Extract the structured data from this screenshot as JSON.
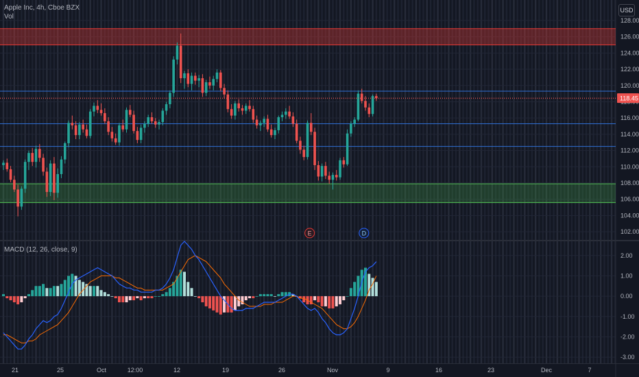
{
  "header": {
    "title": "Apple Inc, 4h, Cboe BZX",
    "vol_label": "Vol",
    "currency": "USD"
  },
  "colors": {
    "background": "#131722",
    "up": "#26a69a",
    "down": "#ef5350",
    "resistance_zone": "#e53935",
    "support_zone": "#43a047",
    "level_line": "#2962ff",
    "macd_line": "#2962ff",
    "signal_line": "#ff6d00"
  },
  "chart_data": [
    {
      "type": "candlestick",
      "title": "Apple Inc, 4h, Cboe BZX",
      "y_axis_ticks": [
        102,
        104,
        106,
        108,
        110,
        112,
        114,
        116,
        118,
        120,
        122,
        124,
        126,
        128
      ],
      "y_axis_tick_labels": [
        "102.00",
        "104.00",
        "106.00",
        "108.00",
        "110.00",
        "112.00",
        "114.00",
        "116.00",
        "118.00",
        "120.00",
        "122.00",
        "124.00",
        "126.00",
        "128.00"
      ],
      "ylim": [
        101,
        128.5
      ],
      "x_axis_labels": [
        "21",
        "25",
        "Oct",
        "12:00",
        "12",
        "19",
        "26",
        "Nov",
        "9",
        "16",
        "23",
        "Dec",
        "7"
      ],
      "last_price": 118.45,
      "last_price_label": "118.45",
      "resistance_zone": [
        125,
        127
      ],
      "support_zone": [
        105.6,
        107.9
      ],
      "horizontal_levels": [
        119.3,
        118.4,
        115.3,
        112.5
      ],
      "events": [
        {
          "label": "E",
          "candle_index": 88
        },
        {
          "label": "D",
          "candle_index": 103
        }
      ],
      "candles": [
        [
          110.2,
          110.8,
          109.6,
          110.5
        ],
        [
          110.5,
          111.0,
          109.4,
          109.7
        ],
        [
          109.7,
          110.1,
          108.1,
          108.4
        ],
        [
          108.4,
          108.9,
          106.9,
          107.2
        ],
        [
          107.2,
          107.8,
          103.9,
          105.1
        ],
        [
          105.1,
          107.6,
          104.7,
          107.3
        ],
        [
          107.3,
          110.9,
          106.8,
          110.6
        ],
        [
          110.6,
          112.0,
          109.6,
          111.7
        ],
        [
          111.7,
          112.3,
          110.1,
          110.6
        ],
        [
          110.6,
          112.6,
          109.9,
          112.2
        ],
        [
          112.2,
          112.8,
          110.6,
          111.1
        ],
        [
          111.1,
          111.6,
          108.9,
          109.4
        ],
        [
          109.4,
          109.9,
          106.3,
          106.9
        ],
        [
          106.9,
          110.8,
          106.4,
          110.4
        ],
        [
          110.4,
          111.2,
          105.9,
          106.8
        ],
        [
          106.8,
          109.8,
          106.2,
          109.1
        ],
        [
          109.1,
          111.3,
          108.6,
          110.9
        ],
        [
          110.9,
          113.1,
          110.4,
          112.9
        ],
        [
          112.9,
          115.7,
          112.4,
          115.4
        ],
        [
          115.4,
          116.3,
          114.6,
          115.1
        ],
        [
          115.1,
          115.6,
          113.4,
          113.9
        ],
        [
          113.9,
          115.5,
          113.4,
          115.2
        ],
        [
          115.2,
          115.8,
          114.2,
          114.6
        ],
        [
          114.6,
          115.2,
          113.5,
          113.8
        ],
        [
          113.8,
          117.1,
          113.5,
          116.8
        ],
        [
          116.8,
          117.9,
          116.2,
          117.5
        ],
        [
          117.5,
          118.2,
          116.6,
          117.0
        ],
        [
          117.0,
          117.8,
          116.3,
          116.6
        ],
        [
          116.6,
          117.2,
          115.3,
          115.6
        ],
        [
          115.6,
          116.1,
          113.9,
          114.3
        ],
        [
          114.3,
          114.9,
          113.1,
          113.5
        ],
        [
          113.5,
          114.1,
          112.7,
          113.0
        ],
        [
          113.0,
          115.4,
          112.6,
          115.1
        ],
        [
          115.1,
          115.8,
          114.3,
          114.6
        ],
        [
          114.6,
          117.3,
          114.2,
          117.0
        ],
        [
          117.0,
          117.6,
          116.1,
          116.4
        ],
        [
          116.4,
          116.9,
          114.1,
          114.4
        ],
        [
          114.4,
          114.9,
          112.9,
          113.3
        ],
        [
          113.3,
          115.2,
          112.9,
          114.8
        ],
        [
          114.8,
          115.6,
          114.2,
          115.3
        ],
        [
          115.3,
          116.4,
          114.9,
          116.1
        ],
        [
          116.1,
          116.7,
          115.3,
          115.6
        ],
        [
          115.6,
          116.0,
          114.8,
          115.2
        ],
        [
          115.2,
          115.8,
          114.6,
          115.5
        ],
        [
          115.5,
          117.2,
          115.1,
          116.9
        ],
        [
          116.9,
          118.0,
          116.4,
          117.7
        ],
        [
          117.7,
          119.4,
          117.2,
          119.1
        ],
        [
          119.1,
          123.6,
          118.6,
          123.2
        ],
        [
          123.2,
          125.3,
          122.6,
          124.9
        ],
        [
          124.9,
          126.4,
          120.3,
          120.9
        ],
        [
          120.9,
          121.8,
          119.6,
          121.5
        ],
        [
          121.5,
          122.0,
          119.8,
          120.2
        ],
        [
          120.2,
          121.6,
          119.4,
          121.2
        ],
        [
          121.2,
          121.6,
          120.1,
          120.6
        ],
        [
          120.6,
          121.3,
          119.8,
          120.9
        ],
        [
          120.9,
          121.4,
          118.6,
          119.1
        ],
        [
          119.1,
          120.7,
          118.7,
          120.4
        ],
        [
          120.4,
          121.1,
          119.6,
          120.0
        ],
        [
          120.0,
          121.2,
          119.4,
          120.8
        ],
        [
          120.8,
          122.0,
          120.4,
          121.6
        ],
        [
          121.6,
          121.9,
          119.3,
          119.7
        ],
        [
          119.7,
          120.2,
          118.4,
          118.9
        ],
        [
          118.9,
          119.4,
          116.7,
          117.1
        ],
        [
          117.1,
          117.7,
          115.9,
          116.3
        ],
        [
          116.3,
          118.1,
          115.8,
          117.8
        ],
        [
          117.8,
          118.3,
          116.8,
          117.2
        ],
        [
          117.2,
          117.6,
          116.4,
          116.9
        ],
        [
          116.9,
          117.8,
          116.5,
          117.5
        ],
        [
          117.5,
          118.2,
          116.8,
          117.1
        ],
        [
          117.1,
          117.5,
          115.4,
          115.8
        ],
        [
          115.8,
          116.3,
          114.7,
          115.1
        ],
        [
          115.1,
          115.7,
          114.4,
          115.4
        ],
        [
          115.4,
          116.2,
          114.9,
          115.9
        ],
        [
          115.9,
          116.4,
          114.3,
          114.6
        ],
        [
          114.6,
          115.2,
          113.6,
          113.9
        ],
        [
          113.9,
          114.8,
          113.4,
          114.5
        ],
        [
          114.5,
          116.3,
          114.1,
          116.1
        ],
        [
          116.1,
          116.8,
          115.6,
          116.4
        ],
        [
          116.4,
          117.2,
          115.9,
          116.8
        ],
        [
          116.8,
          117.5,
          115.9,
          116.2
        ],
        [
          116.2,
          116.7,
          114.9,
          115.3
        ],
        [
          115.3,
          115.8,
          112.9,
          113.2
        ],
        [
          113.2,
          113.7,
          111.6,
          112.1
        ],
        [
          112.1,
          112.6,
          110.8,
          111.2
        ],
        [
          111.2,
          115.7,
          110.9,
          115.4
        ],
        [
          115.4,
          116.6,
          113.9,
          114.3
        ],
        [
          114.3,
          114.8,
          109.6,
          110.2
        ],
        [
          110.2,
          110.7,
          108.3,
          108.8
        ],
        [
          108.8,
          110.4,
          108.2,
          110.1
        ],
        [
          110.1,
          110.6,
          108.5,
          108.9
        ],
        [
          108.9,
          109.4,
          107.9,
          108.4
        ],
        [
          108.4,
          109.3,
          107.2,
          109.0
        ],
        [
          109.0,
          109.6,
          108.3,
          108.7
        ],
        [
          108.7,
          111.1,
          108.4,
          110.8
        ],
        [
          110.8,
          111.2,
          109.9,
          110.3
        ],
        [
          110.3,
          114.6,
          110.1,
          114.1
        ],
        [
          114.1,
          115.6,
          113.7,
          115.3
        ],
        [
          115.3,
          116.1,
          114.9,
          115.8
        ],
        [
          115.8,
          119.4,
          115.6,
          119.0
        ],
        [
          119.0,
          119.6,
          117.8,
          118.1
        ],
        [
          118.1,
          118.7,
          116.9,
          117.3
        ],
        [
          117.3,
          117.8,
          116.1,
          116.5
        ],
        [
          116.5,
          118.9,
          116.2,
          118.7
        ],
        [
          118.7,
          119.0,
          118.1,
          118.45
        ]
      ],
      "volume_note": ""
    },
    {
      "type": "line",
      "title": "MACD (12, 26, close, 9)",
      "y_axis_ticks": [
        -3,
        -2,
        -1,
        0,
        1,
        2
      ],
      "y_axis_tick_labels": [
        "-3.00",
        "-2.00",
        "-1.00",
        "0.00",
        "1.00",
        "2.00"
      ],
      "ylim": [
        -3.3,
        2.7
      ],
      "series": [
        {
          "name": "MACD",
          "values": [
            -1.8,
            -2.0,
            -2.2,
            -2.4,
            -2.6,
            -2.6,
            -2.4,
            -2.1,
            -1.9,
            -1.6,
            -1.4,
            -1.2,
            -1.3,
            -1.2,
            -1.0,
            -0.9,
            -0.6,
            -0.2,
            0.2,
            0.6,
            0.8,
            0.9,
            1.0,
            1.1,
            1.2,
            1.3,
            1.4,
            1.3,
            1.2,
            1.1,
            1.0,
            0.8,
            0.6,
            0.5,
            0.4,
            0.4,
            0.3,
            0.3,
            0.2,
            0.2,
            0.2,
            0.2,
            0.3,
            0.3,
            0.4,
            0.6,
            0.9,
            1.3,
            1.9,
            2.5,
            2.7,
            2.5,
            2.3,
            2.0,
            1.8,
            1.5,
            1.2,
            0.9,
            0.6,
            0.3,
            0.0,
            -0.2,
            -0.4,
            -0.6,
            -0.7,
            -0.7,
            -0.7,
            -0.6,
            -0.6,
            -0.6,
            -0.5,
            -0.4,
            -0.3,
            -0.3,
            -0.3,
            -0.3,
            -0.2,
            -0.1,
            0.0,
            0.1,
            0.1,
            0.0,
            -0.2,
            -0.4,
            -0.6,
            -0.7,
            -0.6,
            -0.8,
            -1.1,
            -1.3,
            -1.6,
            -1.8,
            -1.9,
            -1.9,
            -1.8,
            -1.6,
            -1.1,
            -0.6,
            0.0,
            0.7,
            1.2,
            1.4,
            1.5,
            1.7
          ]
        },
        {
          "name": "Signal",
          "values": [
            -1.9,
            -1.9,
            -2.0,
            -2.1,
            -2.2,
            -2.3,
            -2.3,
            -2.2,
            -2.2,
            -2.1,
            -1.9,
            -1.8,
            -1.7,
            -1.6,
            -1.5,
            -1.4,
            -1.2,
            -1.0,
            -0.8,
            -0.5,
            -0.2,
            0.1,
            0.3,
            0.5,
            0.7,
            0.8,
            0.9,
            1.0,
            1.0,
            1.0,
            1.0,
            0.9,
            0.9,
            0.8,
            0.7,
            0.6,
            0.5,
            0.4,
            0.4,
            0.3,
            0.3,
            0.3,
            0.3,
            0.3,
            0.3,
            0.4,
            0.5,
            0.6,
            0.9,
            1.2,
            1.5,
            1.8,
            1.9,
            2.0,
            1.9,
            1.8,
            1.7,
            1.5,
            1.3,
            1.1,
            0.9,
            0.6,
            0.4,
            0.2,
            0.0,
            -0.2,
            -0.3,
            -0.4,
            -0.5,
            -0.5,
            -0.5,
            -0.5,
            -0.4,
            -0.4,
            -0.4,
            -0.3,
            -0.3,
            -0.3,
            -0.2,
            -0.1,
            0.0,
            0.0,
            -0.1,
            -0.1,
            -0.2,
            -0.3,
            -0.4,
            -0.5,
            -0.6,
            -0.8,
            -1.0,
            -1.2,
            -1.4,
            -1.5,
            -1.6,
            -1.6,
            -1.5,
            -1.3,
            -1.0,
            -0.6,
            -0.2,
            0.3,
            0.6,
            1.0
          ]
        }
      ]
    }
  ]
}
